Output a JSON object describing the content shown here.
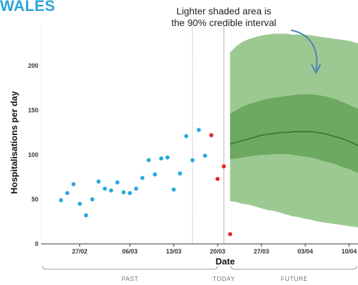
{
  "region_title": "WALES",
  "annotation": {
    "line1": "Lighter shaded area is",
    "line2": "the 90% credible interval"
  },
  "chart_data": {
    "type": "scatter",
    "title": "",
    "xlabel": "Date",
    "ylabel": "Hospitalisations per day",
    "ylim": [
      0,
      220
    ],
    "y_ticks": [
      0,
      50,
      100,
      150,
      200
    ],
    "x_tick_labels": [
      "27/02",
      "06/03",
      "13/03",
      "20/03",
      "27/03",
      "03/04",
      "10/04"
    ],
    "x_start_day": -30,
    "x_end_day": 18,
    "today_label_day": 0,
    "data_cutoff_day": -5,
    "period_labels": {
      "past": "PAST",
      "today": "TODAY",
      "future": "FUTURE"
    },
    "colors": {
      "observed": "#29a8e0",
      "recent": "#e8262a",
      "ci90": "#8bbf7f",
      "ci50": "#5e9e4f",
      "median": "#3d7c2e",
      "title": "#2aa5d9",
      "arrow": "#4a7fb8"
    },
    "series": [
      {
        "name": "observed",
        "points": [
          [
            "24/02",
            49
          ],
          [
            "25/02",
            57
          ],
          [
            "26/02",
            67
          ],
          [
            "27/02",
            45
          ],
          [
            "28/02",
            32
          ],
          [
            "29/02",
            50
          ],
          [
            "01/03",
            70
          ],
          [
            "02/03",
            62
          ],
          [
            "03/03",
            60
          ],
          [
            "04/03",
            69
          ],
          [
            "05/03",
            58
          ],
          [
            "06/03",
            57
          ],
          [
            "07/03",
            62
          ],
          [
            "08/03",
            74
          ],
          [
            "09/03",
            94
          ],
          [
            "10/03",
            78
          ],
          [
            "11/03",
            96
          ],
          [
            "12/03",
            97
          ],
          [
            "13/03",
            61
          ],
          [
            "14/03",
            79
          ],
          [
            "15/03",
            121
          ],
          [
            "16/03",
            94
          ],
          [
            "17/03",
            128
          ],
          [
            "18/03",
            99
          ]
        ]
      },
      {
        "name": "recent",
        "points": [
          [
            "19/03",
            122
          ],
          [
            "20/03",
            73
          ],
          [
            "21/03",
            87
          ],
          [
            "22/03",
            11
          ]
        ]
      },
      {
        "name": "forecast",
        "x": [
          "22/03",
          "23/03",
          "24/03",
          "25/03",
          "26/03",
          "27/03",
          "28/03",
          "29/03",
          "30/03",
          "31/03",
          "01/04",
          "02/04",
          "03/04",
          "04/04",
          "05/04",
          "06/04",
          "07/04",
          "08/04",
          "09/04",
          "10/04",
          "11/04",
          "12/04"
        ],
        "median": [
          112,
          114,
          116,
          118,
          120,
          122,
          123,
          124,
          125,
          125,
          126,
          126,
          126,
          126,
          125,
          124,
          122,
          120,
          118,
          115,
          112,
          108
        ],
        "ci50_low": [
          95,
          96,
          97,
          98,
          99,
          100,
          100,
          101,
          101,
          101,
          100,
          99,
          98,
          97,
          95,
          93,
          91,
          89,
          86,
          84,
          81,
          78
        ],
        "ci50_high": [
          146,
          150,
          154,
          157,
          159,
          161,
          163,
          164,
          165,
          166,
          167,
          168,
          168,
          168,
          167,
          166,
          164,
          162,
          159,
          156,
          153,
          150
        ],
        "ci90_low": [
          48,
          47,
          45,
          44,
          42,
          40,
          38,
          37,
          35,
          33,
          31,
          30,
          28,
          27,
          25,
          24,
          23,
          22,
          21,
          20,
          19,
          18
        ],
        "ci90_high": [
          215,
          222,
          227,
          230,
          232,
          234,
          235,
          236,
          236,
          236,
          235,
          235,
          235,
          234,
          233,
          232,
          231,
          230,
          229,
          228,
          226,
          224
        ]
      }
    ]
  }
}
